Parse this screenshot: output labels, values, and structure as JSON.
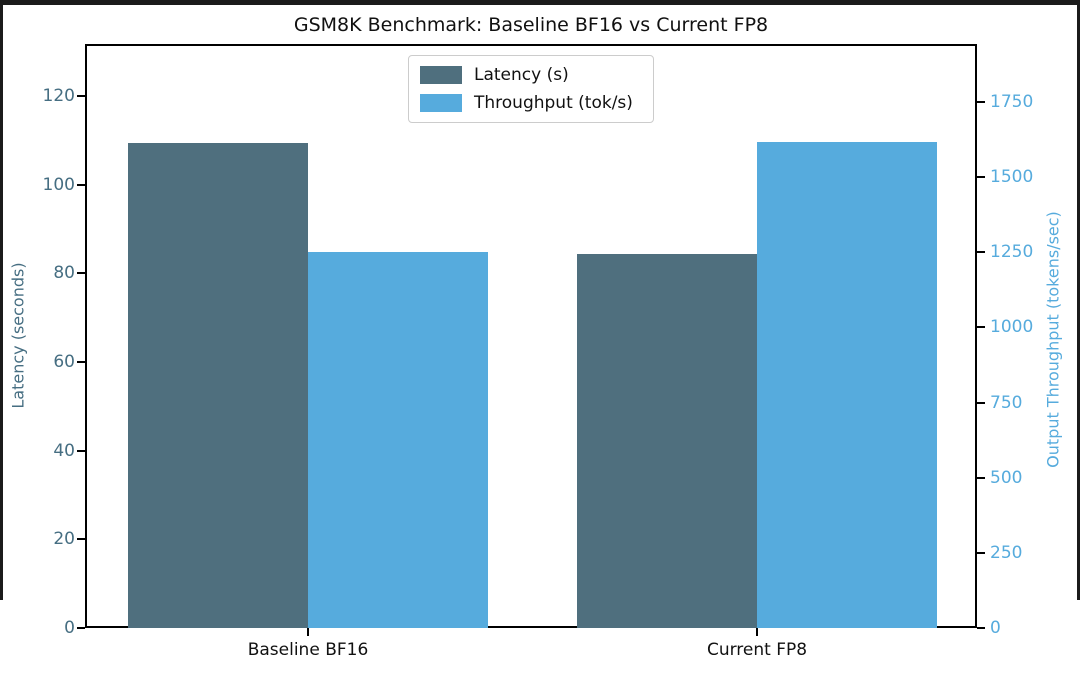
{
  "window": {
    "edge_color": "#1b1b1b",
    "background": "#ffffff"
  },
  "title": "GSM8K Benchmark: Baseline BF16 vs Current FP8",
  "chart_data": {
    "type": "bar",
    "title": "GSM8K Benchmark: Baseline BF16 vs Current FP8",
    "categories": [
      "Baseline BF16",
      "Current FP8"
    ],
    "series": [
      {
        "name": "Latency (s)",
        "axis": "left",
        "values": [
          109.4,
          84.4
        ],
        "color": "#4f6f7e"
      },
      {
        "name": "Throughput (tok/s)",
        "axis": "right",
        "values": [
          1252,
          1616
        ],
        "color": "#56abdd"
      }
    ],
    "left_axis": {
      "label": "Latency (seconds)",
      "ticks": [
        0,
        20,
        40,
        60,
        80,
        100,
        120
      ],
      "range": [
        0,
        131.7
      ],
      "color": "#466e82"
    },
    "right_axis": {
      "label": "Output Throughput (tokens/sec)",
      "ticks": [
        0,
        250,
        500,
        750,
        1000,
        1250,
        1500,
        1750
      ],
      "range": [
        0,
        1943
      ],
      "color": "#56abdd"
    },
    "legend": {
      "position": "upper center"
    },
    "grid": false,
    "text_color": "#111111"
  }
}
